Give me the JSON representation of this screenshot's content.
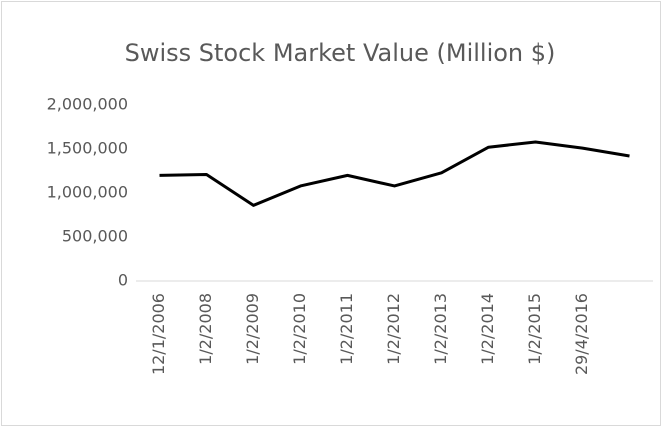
{
  "chart_data": {
    "type": "line",
    "title": "Swiss Stock Market Value (Million $)",
    "categories": [
      "12/1/2006",
      "1/2/2008",
      "1/2/2009",
      "1/2/2010",
      "1/2/2011",
      "1/2/2012",
      "1/2/2013",
      "1/2/2014",
      "1/2/2015",
      "29/4/2016",
      null
    ],
    "series": [
      {
        "name": "Swiss Stock Market Value",
        "color": "#000000",
        "values": [
          1200000,
          1210000,
          860000,
          1080000,
          1200000,
          1080000,
          1230000,
          1520000,
          1580000,
          1510000,
          1420000
        ]
      }
    ],
    "ylim": [
      0,
      2000000
    ],
    "yticks": [
      0,
      {
        "value": 500000,
        "label": "500,000"
      },
      {
        "value": 1000000,
        "label": "1,000,000"
      },
      {
        "value": 1500000,
        "label": "1,500,000"
      },
      {
        "value": 2000000,
        "label": "2,000,000"
      }
    ],
    "grid": false
  }
}
